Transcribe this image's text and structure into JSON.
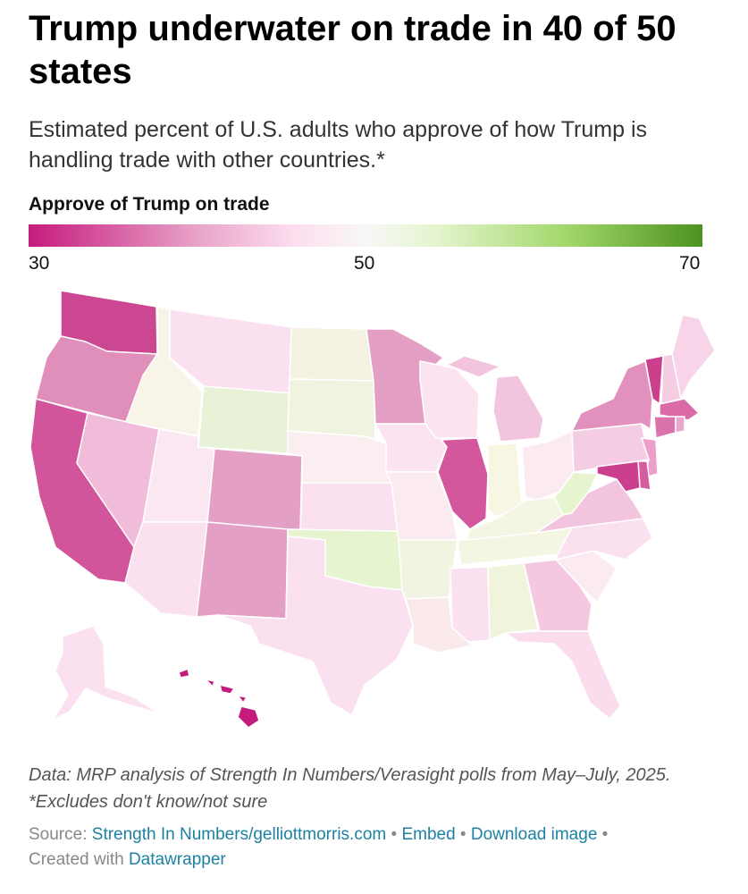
{
  "header": {
    "title": "Trump underwater on trade in 40 of 50 states",
    "subtitle": "Estimated percent of U.S. adults who approve of how Trump is handling trade with other countries.*"
  },
  "legend": {
    "title": "Approve of Trump on trade",
    "ticks": [
      "30",
      "50",
      "70"
    ],
    "colors": [
      "#c51b7d",
      "#e9a3c9",
      "#fde0ef",
      "#f7f7f7",
      "#e6f5d0",
      "#a1d76a",
      "#4d9221"
    ]
  },
  "state_fills": {
    "WA": "#cc4791",
    "OR": "#e08fba",
    "CA": "#d2549b",
    "NV": "#f0bcd9",
    "ID": "#f8f4e8",
    "MT": "#fbe0ef",
    "WY": "#e7f2d6",
    "UT": "#fbe7f1",
    "AZ": "#fbe0ef",
    "CO": "#e49fc5",
    "NM": "#e49fc5",
    "ND": "#f6f2e2",
    "SD": "#f0f3e0",
    "NE": "#fbeef0",
    "KS": "#fbe0ef",
    "OK": "#e6f5d0",
    "TX": "#fbe0ef",
    "MN": "#e49fc5",
    "IA": "#fbe4f0",
    "MO": "#fbeaf0",
    "AR": "#f1f4e0",
    "LA": "#f9e9ea",
    "WI": "#fbe4f0",
    "IL": "#d4579d",
    "MI": "#f3c4de",
    "IN": "#f6f6e2",
    "OH": "#fbeaf0",
    "KY": "#f4f5e2",
    "TN": "#f4f5e2",
    "MS": "#fbe0ef",
    "AL": "#f0f4dc",
    "GA": "#f5c8df",
    "FL": "#fbdced",
    "SC": "#fbeaf0",
    "NC": "#fbe0ef",
    "VA": "#f3c4de",
    "WV": "#e6f5d0",
    "PA": "#f5cde2",
    "NY": "#e290bd",
    "VT": "#cc3f8c",
    "NH": "#f5cde2",
    "ME": "#f7d4e7",
    "MA": "#da6aa8",
    "RI": "#e8a8cb",
    "CT": "#dc72ac",
    "NJ": "#ec9fc8",
    "DE": "#d65ca0",
    "MD": "#cc3f8c",
    "AK": "#fbe0ef",
    "HI": "#c51b7d"
  },
  "notes": "Data: MRP analysis of Strength In Numbers/Verasight polls from May–July, 2025. *Excludes don't know/not sure",
  "source": {
    "label": "Source:",
    "link": "Strength In Numbers/gelliottmorris.com",
    "embed": "Embed",
    "download": "Download image",
    "created": "Created with",
    "tool": "Datawrapper",
    "separator": "•"
  }
}
